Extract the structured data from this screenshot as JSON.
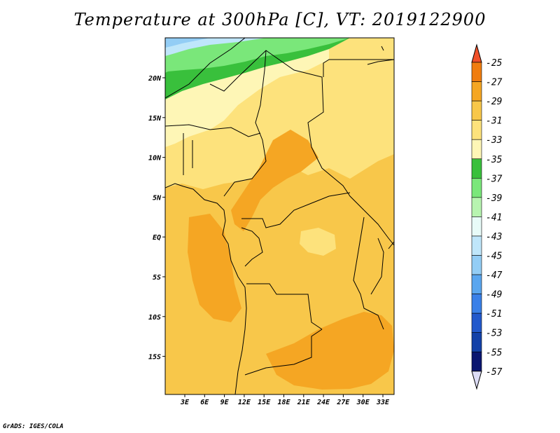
{
  "title": "Temperature at 300hPa [C], VT: 2019122900",
  "credit": "GrADS: IGES/COLA",
  "map": {
    "lon_ticks": [
      "3E",
      "6E",
      "9E",
      "12E",
      "15E",
      "18E",
      "21E",
      "24E",
      "27E",
      "30E",
      "33E"
    ],
    "lat_ticks": [
      "20N",
      "15N",
      "10N",
      "5N",
      "EQ",
      "5S",
      "10S",
      "15S"
    ]
  },
  "colorbar": {
    "labels": [
      "-25",
      "-27",
      "-29",
      "-31",
      "-33",
      "-35",
      "-37",
      "-39",
      "-41",
      "-43",
      "-45",
      "-47",
      "-49",
      "-51",
      "-53",
      "-55",
      "-57"
    ],
    "colors": [
      "#f0502a",
      "#f07d0f",
      "#f5a623",
      "#f8c74a",
      "#fde27c",
      "#fef6b6",
      "#39c03c",
      "#7ae77a",
      "#b7f4b0",
      "#e8fbf8",
      "#bfe6fa",
      "#93cdf5",
      "#5aa6ef",
      "#3a80e8",
      "#2259cc",
      "#1341a8",
      "#0a1670",
      "#dcdcf5"
    ]
  },
  "field_colors": {
    "blue": "#93cdf5",
    "light_blue": "#bfe6fa",
    "green": "#39c03c",
    "light_green": "#7ae77a",
    "pale_yellow": "#fef6b6",
    "yellow": "#fde27c",
    "light_orange": "#f8c74a",
    "orange": "#f5a623"
  }
}
